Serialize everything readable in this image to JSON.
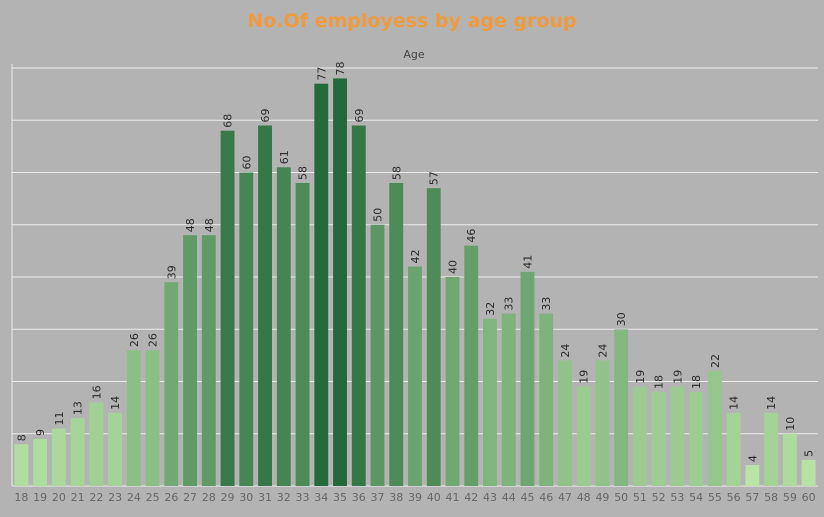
{
  "chart_data": {
    "type": "bar",
    "title": "No.Of employess by age group",
    "subtitle": "Age",
    "xlabel": "",
    "ylabel": "",
    "grid": true,
    "ylim": [
      0,
      80
    ],
    "categories": [
      "18",
      "19",
      "20",
      "21",
      "22",
      "23",
      "24",
      "25",
      "26",
      "27",
      "28",
      "29",
      "30",
      "31",
      "32",
      "33",
      "34",
      "35",
      "36",
      "37",
      "38",
      "39",
      "40",
      "41",
      "42",
      "43",
      "44",
      "45",
      "46",
      "47",
      "48",
      "49",
      "50",
      "51",
      "52",
      "53",
      "54",
      "55",
      "56",
      "57",
      "58",
      "59",
      "60"
    ],
    "values": [
      8,
      9,
      11,
      13,
      16,
      14,
      26,
      26,
      39,
      48,
      48,
      68,
      60,
      69,
      61,
      58,
      77,
      78,
      69,
      50,
      58,
      42,
      57,
      40,
      46,
      32,
      33,
      41,
      33,
      24,
      19,
      24,
      30,
      19,
      18,
      19,
      18,
      22,
      14,
      4,
      14,
      10,
      5
    ],
    "color_scale": {
      "low": "#b9e4a6",
      "high": "#23683a"
    }
  }
}
